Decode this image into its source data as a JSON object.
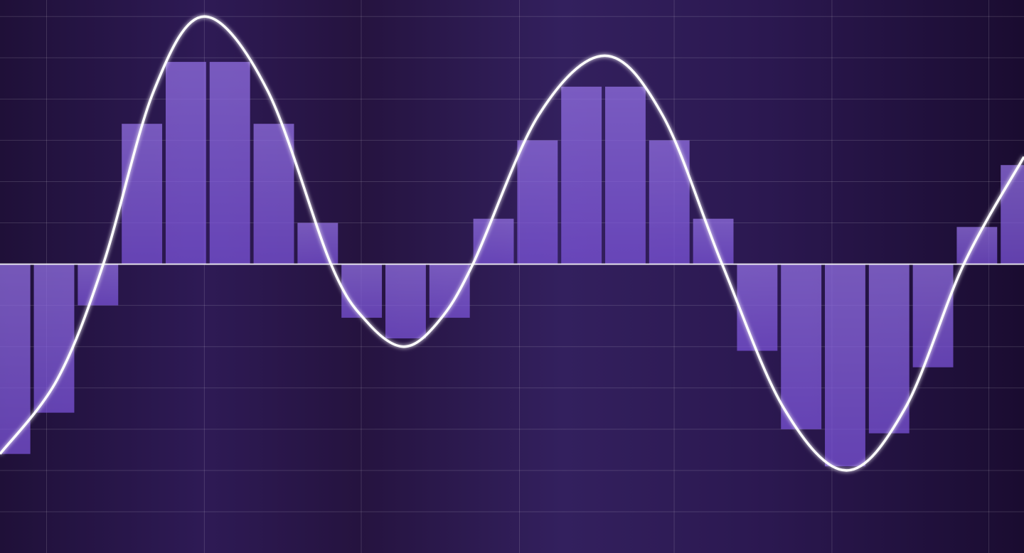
{
  "chart_data": {
    "type": "bar",
    "categories": [
      null,
      null,
      null,
      null,
      null,
      null,
      null,
      null,
      null,
      null,
      null,
      null,
      null,
      null,
      null,
      null,
      null,
      null,
      null,
      null,
      null,
      null,
      null,
      null
    ],
    "series": [
      {
        "type": "bar",
        "color": "#7d55dc",
        "values": [
          -4.6,
          -3.6,
          -1.0,
          3.4,
          4.9,
          4.9,
          3.4,
          1.0,
          -1.3,
          -1.8,
          -1.3,
          1.1,
          3.0,
          4.3,
          4.3,
          3.0,
          1.1,
          -2.1,
          -4.0,
          -4.9,
          -4.1,
          -2.5,
          0.9,
          2.4
        ]
      },
      {
        "type": "line",
        "color": "#ffffff",
        "x": [
          -0.23,
          1.07,
          2.12,
          3.27,
          4.42,
          5.86,
          7.3,
          8.12,
          8.96,
          9.74,
          10.53,
          12.02,
          13.53,
          14.85,
          16.2,
          17.61,
          19.03,
          20.36,
          21.7,
          23.07
        ],
        "values": [
          -4.6,
          -2.8,
          0,
          4.2,
          6.0,
          4.2,
          0,
          -1.4,
          -2.0,
          -1.4,
          0,
          3.6,
          5.05,
          3.6,
          0,
          -3.5,
          -5.0,
          -3.5,
          0,
          2.6
        ]
      }
    ],
    "xlim": [
      -0.23,
      23.07
    ],
    "ylim": [
      -7,
      6.4
    ],
    "xticks": [
      0.83,
      4.42,
      7.99,
      11.59,
      15.11,
      18.7,
      22.27
    ],
    "yticks": [
      -6,
      -5,
      -4,
      -3,
      -2,
      -1,
      1,
      2,
      3,
      4,
      5,
      6
    ],
    "grid": true
  }
}
